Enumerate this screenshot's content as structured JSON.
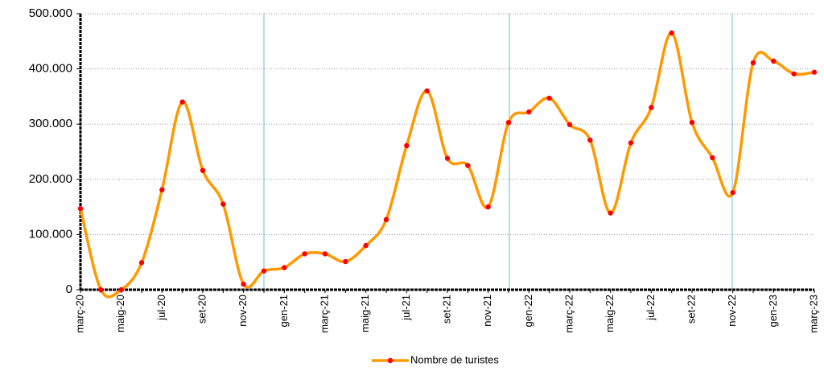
{
  "chart_data": {
    "type": "line",
    "categories": [
      "març-20",
      null,
      "maig-20",
      null,
      "jul-20",
      null,
      "set-20",
      null,
      "nov-20",
      null,
      "gen-21",
      null,
      "març-21",
      null,
      "maig-21",
      null,
      "jul-21",
      null,
      "set-21",
      null,
      "nov-21",
      null,
      "gen-22",
      null,
      "març-22",
      null,
      "maig-22",
      null,
      "jul-22",
      null,
      "set-22",
      null,
      "nov-22",
      null,
      "gen-23",
      null,
      "març-23"
    ],
    "series": [
      {
        "name": "Nombre de turistes",
        "color": "#ff9900",
        "marker_color": "#ff0000",
        "values": [
          147000,
          0,
          0,
          49000,
          181000,
          340000,
          216000,
          155000,
          10000,
          34000,
          40000,
          65000,
          65000,
          51000,
          80000,
          127000,
          261000,
          360000,
          238000,
          225000,
          150000,
          303000,
          322000,
          347000,
          299000,
          271000,
          139000,
          266000,
          330000,
          465000,
          303000,
          239000,
          176000,
          411000,
          414000,
          391000,
          394000
        ]
      }
    ],
    "ylim": [
      0,
      500000
    ],
    "yticks": [
      0,
      {
        "value": 100000,
        "label": "100.000"
      },
      {
        "value": 200000,
        "label": "200.000"
      },
      {
        "value": 300000,
        "label": "300.000"
      },
      {
        "value": 400000,
        "label": "400.000"
      },
      {
        "value": 500000,
        "label": "500.000"
      }
    ],
    "grid": true,
    "legend": "bottom"
  }
}
